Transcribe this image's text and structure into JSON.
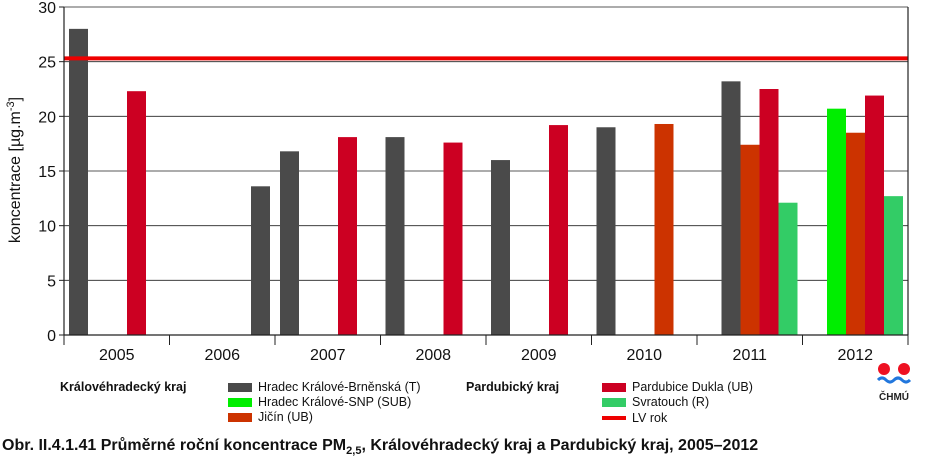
{
  "chart_data": {
    "type": "bar",
    "ylabel": "koncentrace [µg.m-3]",
    "ylim": [
      0,
      30
    ],
    "yticks": [
      0,
      5,
      10,
      15,
      20,
      25,
      30
    ],
    "grid": true,
    "categories": [
      "2005",
      "2006",
      "2007",
      "2008",
      "2009",
      "2010",
      "2011",
      "2012"
    ],
    "series": [
      {
        "name": "Hradec Králové-Brněnská (T)",
        "color": "#4a4a4a",
        "values": [
          28.0,
          13.6,
          16.8,
          18.1,
          16.0,
          19.0,
          23.2,
          null
        ]
      },
      {
        "name": "Hradec Králové-SNP (SUB)",
        "color": "#00ee00",
        "values": [
          null,
          null,
          null,
          null,
          null,
          null,
          null,
          20.7
        ]
      },
      {
        "name": "Jičín (UB)",
        "color": "#cc3300",
        "values": [
          null,
          null,
          null,
          null,
          null,
          19.3,
          17.4,
          18.5
        ]
      },
      {
        "name": "Pardubice Dukla (UB)",
        "color": "#cc0022",
        "values": [
          22.3,
          null,
          18.1,
          17.6,
          19.2,
          null,
          22.5,
          21.9
        ]
      },
      {
        "name": "Svratouch (R)",
        "color": "#33cc66",
        "values": [
          null,
          null,
          null,
          null,
          null,
          null,
          12.1,
          12.7
        ]
      }
    ],
    "reference_line": {
      "name": "LV rok",
      "value": 25.3,
      "color": "#ee0000"
    },
    "legend_placement": "bottom"
  },
  "legend": {
    "region_hk": "Královéhradecký kraj",
    "region_pa": "Pardubický kraj"
  },
  "logo": {
    "text": "ČHMÚ"
  },
  "caption": {
    "prefix": "Obr. II.4.1.41  Průměrné roční koncentrace PM",
    "sub": "2,5",
    "suffix": ", Královéhradecký kraj a Pardubický kraj, 2005–2012"
  }
}
